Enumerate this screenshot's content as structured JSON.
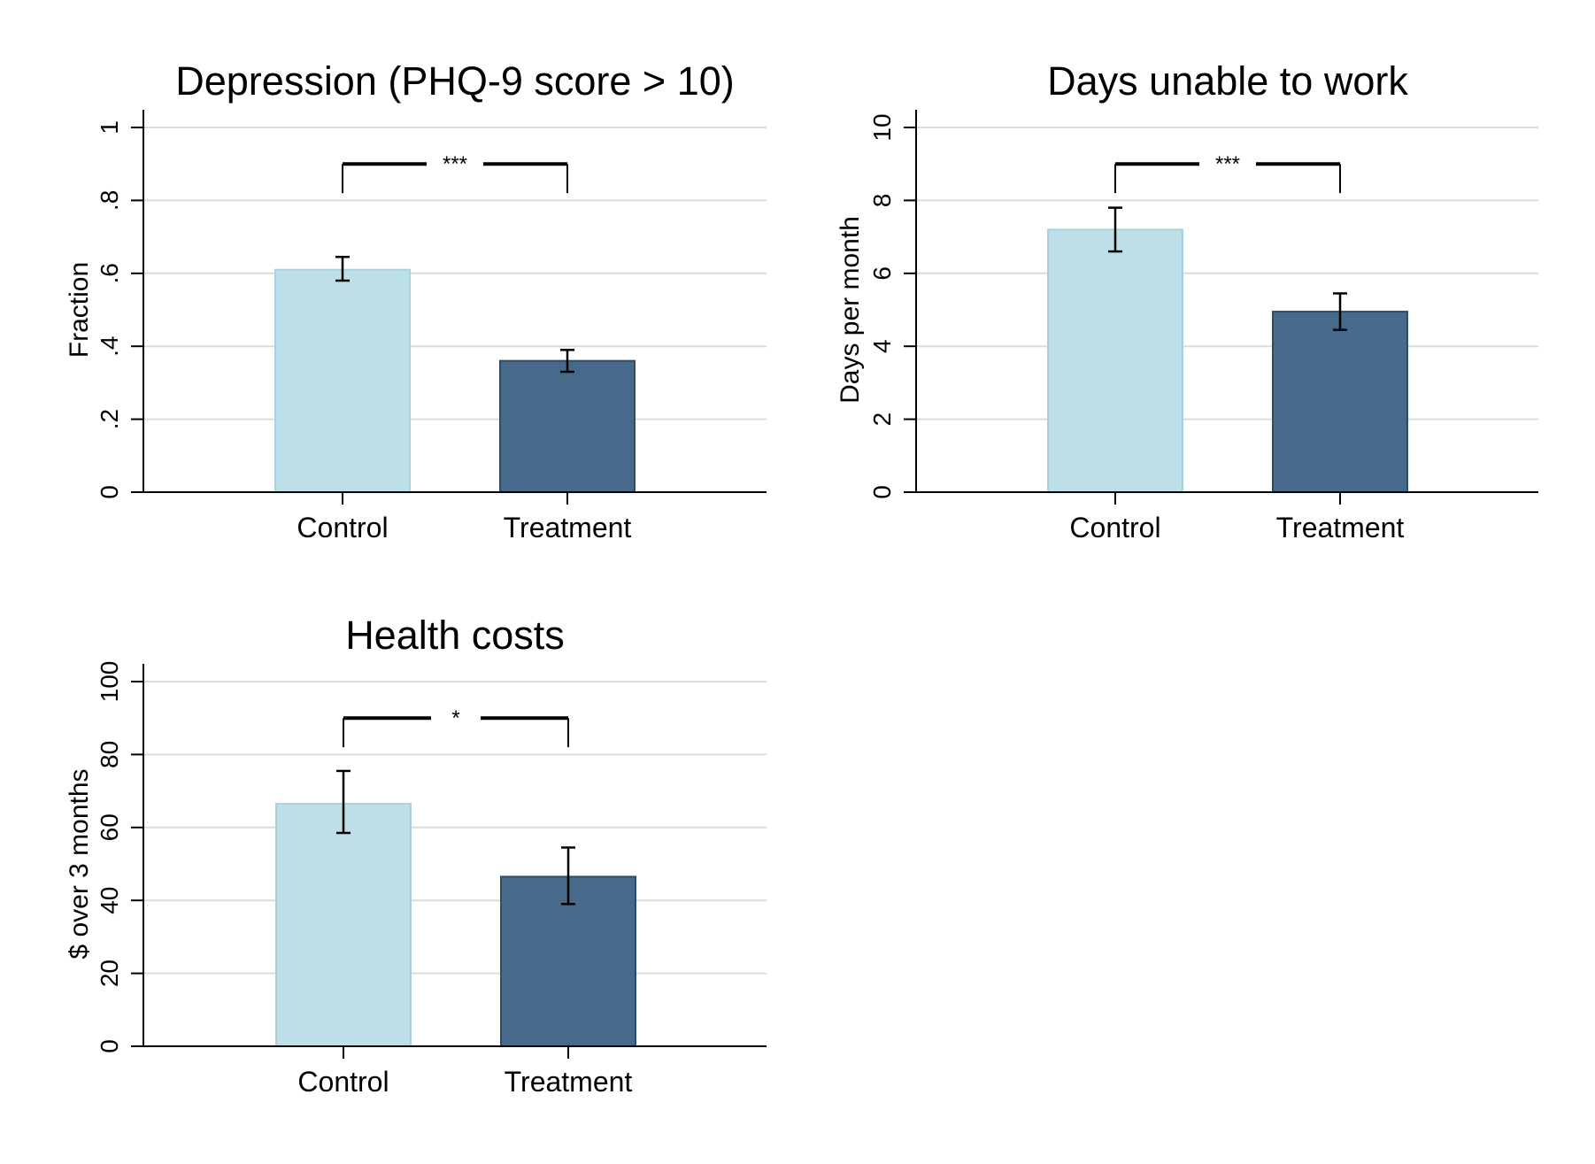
{
  "chart_data": [
    {
      "type": "bar",
      "title": "Depression (PHQ-9 score > 10)",
      "xlabel": "",
      "ylabel": "Fraction",
      "categories": [
        "Control",
        "Treatment"
      ],
      "values": [
        0.61,
        0.36
      ],
      "error_bars": [
        [
          0.58,
          0.645
        ],
        [
          0.33,
          0.39
        ]
      ],
      "ylim": [
        0,
        1
      ],
      "yticks": [
        0,
        0.2,
        0.4,
        0.6,
        0.8,
        1
      ],
      "ytick_labels": [
        "0",
        ".2",
        ".4",
        ".6",
        ".8",
        "1"
      ],
      "significance": {
        "label": "***",
        "y": 0.9,
        "drop_to": 0.82
      },
      "grid": true,
      "colors": [
        "#bde0e8",
        "#476a8a"
      ]
    },
    {
      "type": "bar",
      "title": "Days unable to work",
      "xlabel": "",
      "ylabel": "Days per month",
      "categories": [
        "Control",
        "Treatment"
      ],
      "values": [
        7.2,
        4.95
      ],
      "error_bars": [
        [
          6.6,
          7.8
        ],
        [
          4.45,
          5.45
        ]
      ],
      "ylim": [
        0,
        10
      ],
      "yticks": [
        0,
        2,
        4,
        6,
        8,
        10
      ],
      "ytick_labels": [
        "0",
        "2",
        "4",
        "6",
        "8",
        "10"
      ],
      "significance": {
        "label": "***",
        "y": 9.0,
        "drop_to": 8.2
      },
      "grid": true,
      "colors": [
        "#bde0e8",
        "#476a8a"
      ]
    },
    {
      "type": "bar",
      "title": "Health costs",
      "xlabel": "",
      "ylabel": "$ over 3 months",
      "categories": [
        "Control",
        "Treatment"
      ],
      "values": [
        66.5,
        46.5
      ],
      "error_bars": [
        [
          58.5,
          75.5
        ],
        [
          39,
          54.5
        ]
      ],
      "ylim": [
        0,
        100
      ],
      "yticks": [
        0,
        20,
        40,
        60,
        80,
        100
      ],
      "ytick_labels": [
        "0",
        "20",
        "40",
        "60",
        "80",
        "100"
      ],
      "significance": {
        "label": "*",
        "y": 90,
        "drop_to": 82
      },
      "grid": true,
      "colors": [
        "#bde0e8",
        "#476a8a"
      ]
    }
  ]
}
